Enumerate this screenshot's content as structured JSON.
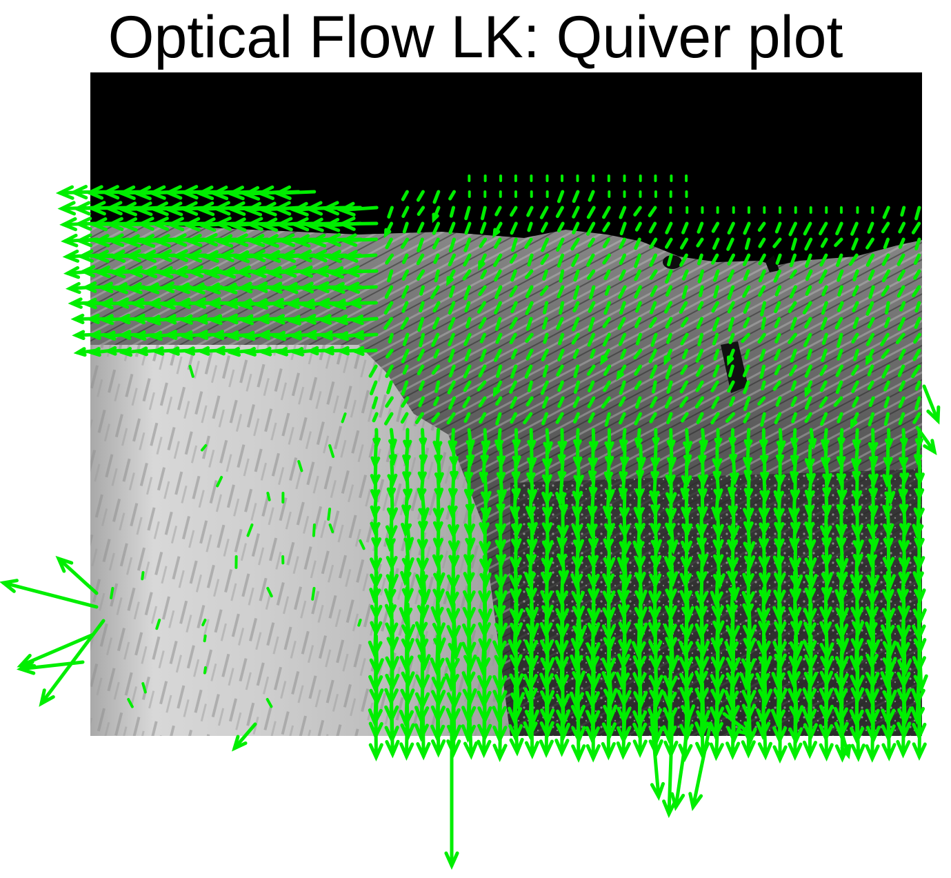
{
  "title": "Optical Flow LK: Quiver plot",
  "colors": {
    "background": "#ffffff",
    "title_text": "#000000",
    "arrow": "#00ee00",
    "sky": "#000000"
  },
  "image": {
    "description_tag": "grayscale-waterfall-frame",
    "arrow_color_name": "green"
  }
}
